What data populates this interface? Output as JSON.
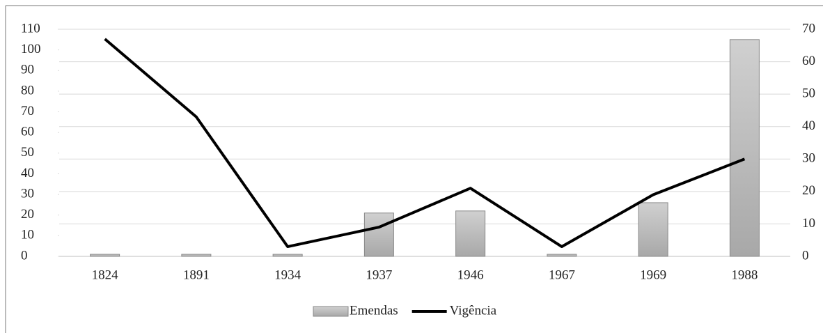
{
  "chart_data": {
    "type": "bar-line",
    "categories": [
      "1824",
      "1891",
      "1934",
      "1937",
      "1946",
      "1967",
      "1969",
      "1988"
    ],
    "series": [
      {
        "name": "Emendas",
        "type": "bar",
        "color": "#b8b8b8",
        "values": [
          1,
          1,
          1,
          21,
          22,
          1,
          26,
          105
        ]
      },
      {
        "name": "Vigência",
        "type": "line",
        "axis": "y2",
        "color": "#000000",
        "values": [
          67,
          43,
          3,
          9,
          21,
          3,
          19,
          30
        ]
      }
    ],
    "ylim": [
      0,
      110
    ],
    "yticks": [
      0,
      10,
      20,
      30,
      40,
      50,
      60,
      70,
      80,
      90,
      100,
      110
    ],
    "y2lim": [
      0,
      70
    ],
    "y2ticks": [
      0,
      10,
      20,
      30,
      40,
      50,
      60,
      70
    ],
    "grid": true,
    "legend": "bottom"
  }
}
